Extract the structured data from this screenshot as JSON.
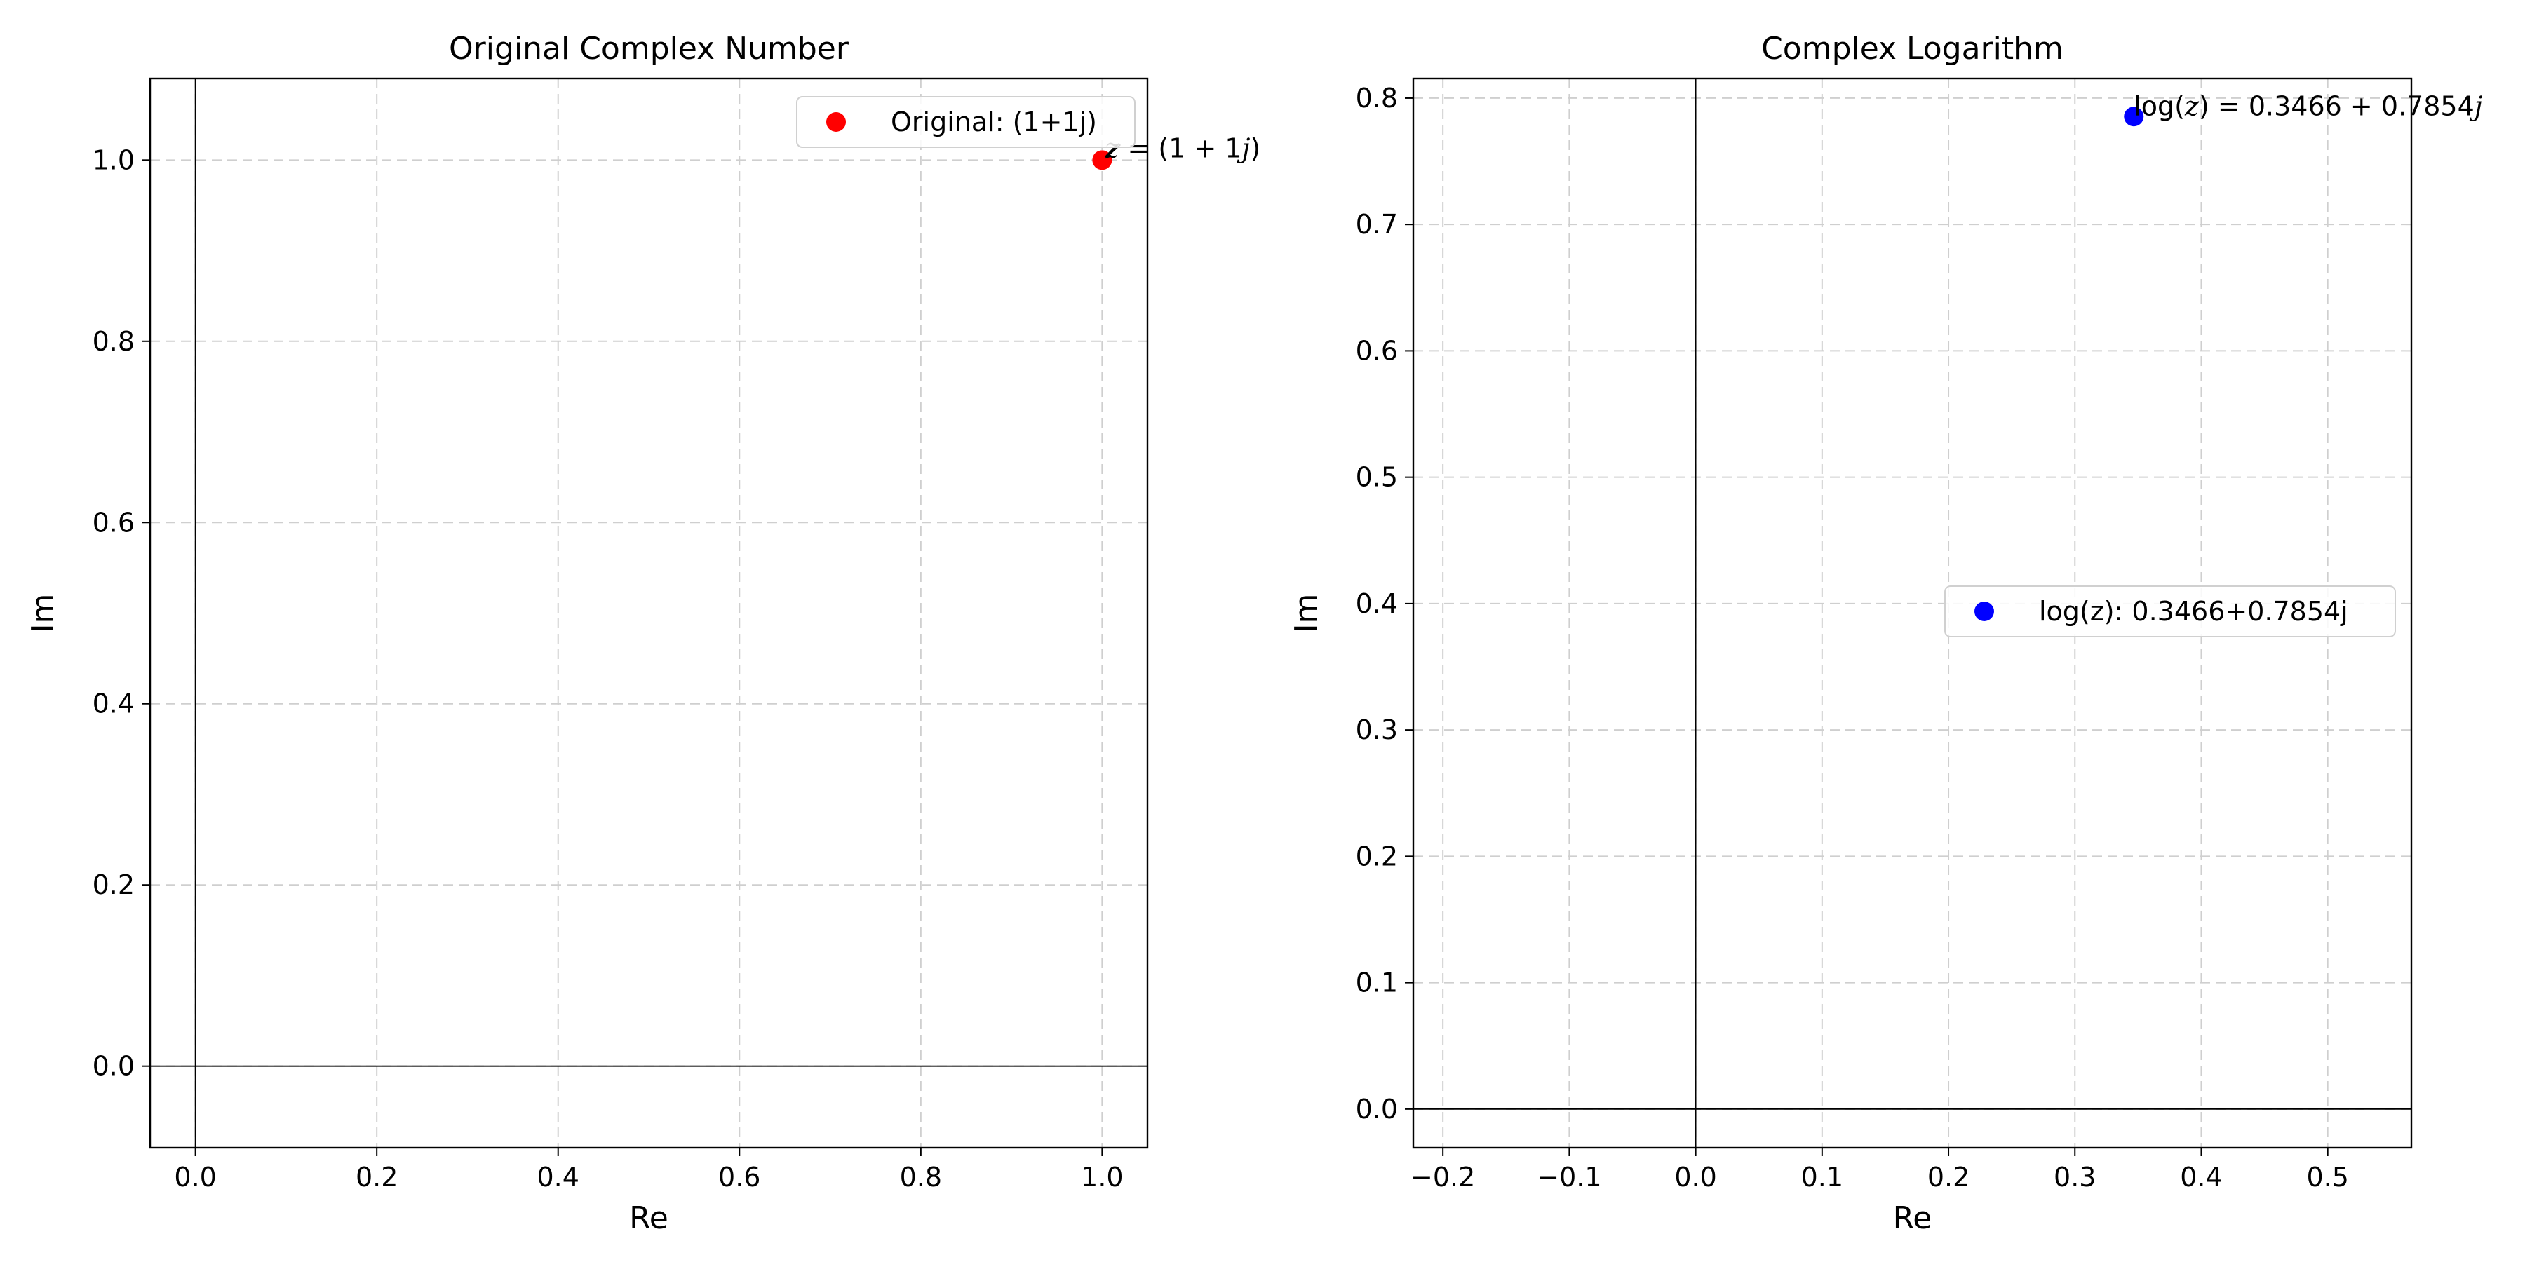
{
  "chart_data": [
    {
      "type": "scatter",
      "title": "Original Complex Number",
      "xlabel": "Re",
      "ylabel": "Im",
      "xlim": [
        -0.05,
        1.05
      ],
      "ylim": [
        -0.09,
        1.09
      ],
      "xticks": [
        0.0,
        0.2,
        0.4,
        0.6,
        0.8,
        1.0
      ],
      "yticks": [
        0.0,
        0.2,
        0.4,
        0.6,
        0.8,
        1.0
      ],
      "xtick_labels": [
        "0.0",
        "0.2",
        "0.4",
        "0.6",
        "0.8",
        "1.0"
      ],
      "ytick_labels": [
        "0.0",
        "0.2",
        "0.4",
        "0.6",
        "0.8",
        "1.0"
      ],
      "grid": true,
      "zero_lines": true,
      "legend_position": "upper-right",
      "series": [
        {
          "name": "Original: (1+1j)",
          "color": "#ff0000",
          "points": [
            {
              "x": 1.0,
              "y": 1.0
            }
          ]
        }
      ],
      "annotations": [
        {
          "x": 1.0,
          "y": 1.0,
          "parts": [
            [
              "z",
              "it"
            ],
            [
              " = (1 + 1",
              ""
            ],
            [
              "j",
              "it"
            ],
            [
              ")",
              ""
            ]
          ]
        }
      ]
    },
    {
      "type": "scatter",
      "title": "Complex Logarithm",
      "xlabel": "Re",
      "ylabel": "Im",
      "xlim": [
        -0.2234,
        0.5662
      ],
      "ylim": [
        -0.0306,
        0.8155
      ],
      "xticks": [
        -0.2,
        -0.1,
        0.0,
        0.1,
        0.2,
        0.3,
        0.4,
        0.5
      ],
      "yticks": [
        0.0,
        0.1,
        0.2,
        0.3,
        0.4,
        0.5,
        0.6,
        0.7,
        0.8
      ],
      "xtick_labels": [
        "−0.2",
        "−0.1",
        "0.0",
        "0.1",
        "0.2",
        "0.3",
        "0.4",
        "0.5"
      ],
      "ytick_labels": [
        "0.0",
        "0.1",
        "0.2",
        "0.3",
        "0.4",
        "0.5",
        "0.6",
        "0.7",
        "0.8"
      ],
      "grid": true,
      "zero_lines": true,
      "legend_position": "center-right",
      "series": [
        {
          "name": "log(z): 0.3466+0.7854j",
          "color": "#0000ff",
          "points": [
            {
              "x": 0.3466,
              "y": 0.7854
            }
          ]
        }
      ],
      "annotations": [
        {
          "x": 0.3466,
          "y": 0.7854,
          "parts": [
            [
              "log(",
              ""
            ],
            [
              "z",
              "it"
            ],
            [
              ") = 0.3466 + 0.7854",
              ""
            ],
            [
              "j",
              "it"
            ]
          ]
        }
      ]
    }
  ]
}
